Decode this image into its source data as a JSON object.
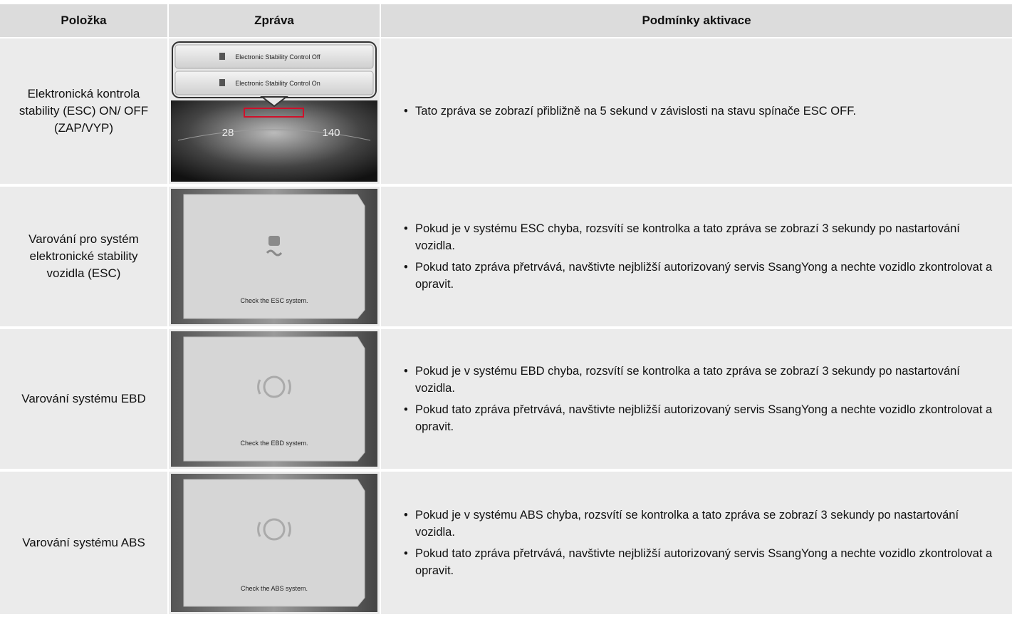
{
  "table": {
    "header": [
      "Položka",
      "Zpráva",
      "Podmínky aktivace"
    ],
    "rows": [
      {
        "item": "Elektronická kontrola stability (ESC) ON/ OFF (ZAP/VYP)",
        "screen": {
          "popups": [
            "Electronic Stability Control Off",
            "Electronic Stability Control On"
          ],
          "gauges": [
            "28",
            "140"
          ]
        },
        "conditions": [
          "Tato zpráva se zobrazí přibližně na 5 sekund v závislosti na stavu spínače ESC OFF."
        ]
      },
      {
        "item": "Varování pro systém elektronické stability vozidla (ESC)",
        "screen": {
          "message": "Check the ESC system."
        },
        "conditions": [
          "Pokud je v systému ESC chyba, rozsvítí se kontrolka a tato zpráva se zobrazí 3 sekundy po nastartování vozidla.",
          "Pokud tato zpráva přetrvává, navštivte nejbližší autorizovaný servis SsangYong a nechte vozidlo zkontrolovat a opravit."
        ]
      },
      {
        "item": "Varování systému EBD",
        "screen": {
          "message": "Check the EBD system."
        },
        "conditions": [
          "Pokud je v systému EBD chyba, rozsvítí se kontrolka a tato zpráva se zobrazí 3 sekundy po nastartování vozidla.",
          "Pokud tato zpráva přetrvává, navštivte nejbližší autorizovaný servis SsangYong a nechte vozidlo zkontrolovat a opravit."
        ]
      },
      {
        "item": "Varování systému ABS",
        "screen": {
          "message": "Check the ABS system."
        },
        "conditions": [
          "Pokud je v systému ABS chyba, rozsvítí se kontrolka a tato zpráva se zobrazí 3 sekundy po nastartování vozidla.",
          "Pokud tato zpráva přetrvává, navštivte nejbližší autorizovaný servis SsangYong a nechte vozidlo zkontrolovat a opravit."
        ]
      }
    ]
  }
}
